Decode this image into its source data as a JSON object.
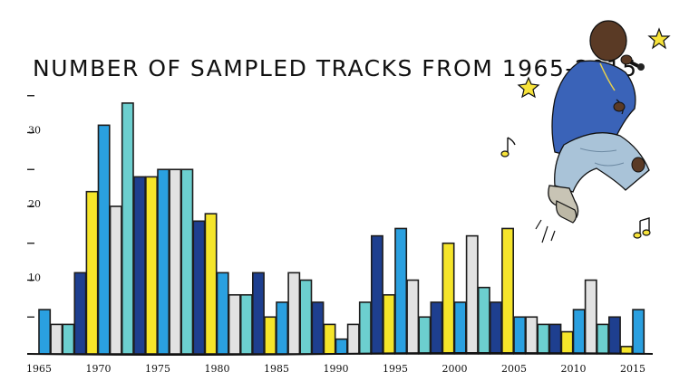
{
  "chart_data": {
    "type": "bar",
    "title": "NUMBER OF SAMPLED TRACKS FROM 1965-2015",
    "xlabel": "",
    "ylabel": "",
    "ylim": [
      0,
      35
    ],
    "y_ticks": [
      5,
      10,
      15,
      20,
      25,
      30,
      35
    ],
    "y_tick_labels": [
      "",
      "10",
      "",
      "20",
      "",
      "30",
      ""
    ],
    "x_tick_labels": [
      "1965",
      "1970",
      "1975",
      "1980",
      "1985",
      "1990",
      "1995",
      "2000",
      "2005",
      "2010",
      "2015"
    ],
    "grid": false,
    "legend": "none",
    "categories": [
      "1965",
      "1966",
      "1967",
      "1968",
      "1969",
      "1970",
      "1971",
      "1972",
      "1973",
      "1974",
      "1975",
      "1976",
      "1977",
      "1978",
      "1979",
      "1980",
      "1981",
      "1982",
      "1983",
      "1984",
      "1985",
      "1986",
      "1987",
      "1988",
      "1989",
      "1990",
      "1991",
      "1992",
      "1993",
      "1994",
      "1995",
      "1996",
      "1997",
      "1998",
      "1999",
      "2000",
      "2001",
      "2002",
      "2003",
      "2004",
      "2005",
      "2006",
      "2007",
      "2008",
      "2009",
      "2010",
      "2011",
      "2012",
      "2013",
      "2014",
      "2015"
    ],
    "values": [
      6,
      4,
      4,
      11,
      22,
      31,
      20,
      34,
      24,
      24,
      25,
      25,
      25,
      18,
      19,
      11,
      8,
      8,
      11,
      5,
      7,
      11,
      10,
      7,
      4,
      2,
      4,
      7,
      16,
      8,
      17,
      10,
      5,
      7,
      15,
      7,
      16,
      9,
      7,
      17,
      5,
      5,
      4,
      4,
      3,
      6,
      10,
      4,
      5,
      1,
      6
    ],
    "bar_colors": [
      "#2aa0e0",
      "#e2e2e2",
      "#6ccfcf",
      "#1e3f8f",
      "#f5e52a",
      "#2aa0e0",
      "#e2e2e2",
      "#6ccfcf",
      "#1e3f8f",
      "#f5e52a",
      "#2aa0e0",
      "#e2e2e2",
      "#6ccfcf",
      "#1e3f8f",
      "#f5e52a",
      "#2aa0e0",
      "#e2e2e2",
      "#6ccfcf",
      "#1e3f8f",
      "#f5e52a",
      "#2aa0e0",
      "#e2e2e2",
      "#6ccfcf",
      "#1e3f8f",
      "#f5e52a",
      "#2aa0e0",
      "#e2e2e2",
      "#6ccfcf",
      "#1e3f8f",
      "#f5e52a",
      "#2aa0e0",
      "#e2e2e2",
      "#6ccfcf",
      "#1e3f8f",
      "#f5e52a",
      "#2aa0e0",
      "#e2e2e2",
      "#6ccfcf",
      "#1e3f8f",
      "#f5e52a",
      "#2aa0e0",
      "#e2e2e2",
      "#6ccfcf",
      "#1e3f8f",
      "#f5e52a",
      "#2aa0e0",
      "#e2e2e2",
      "#6ccfcf",
      "#1e3f8f",
      "#f5e52a",
      "#2aa0e0"
    ]
  },
  "illustration": {
    "name": "jumping-rapper-illustration",
    "colors": {
      "shirt": "#3a63b8",
      "jeans": "#a9c3d8",
      "skin": "#5a3a25",
      "shoes": "#c8c4b5",
      "stars": "#f7e33a"
    }
  }
}
